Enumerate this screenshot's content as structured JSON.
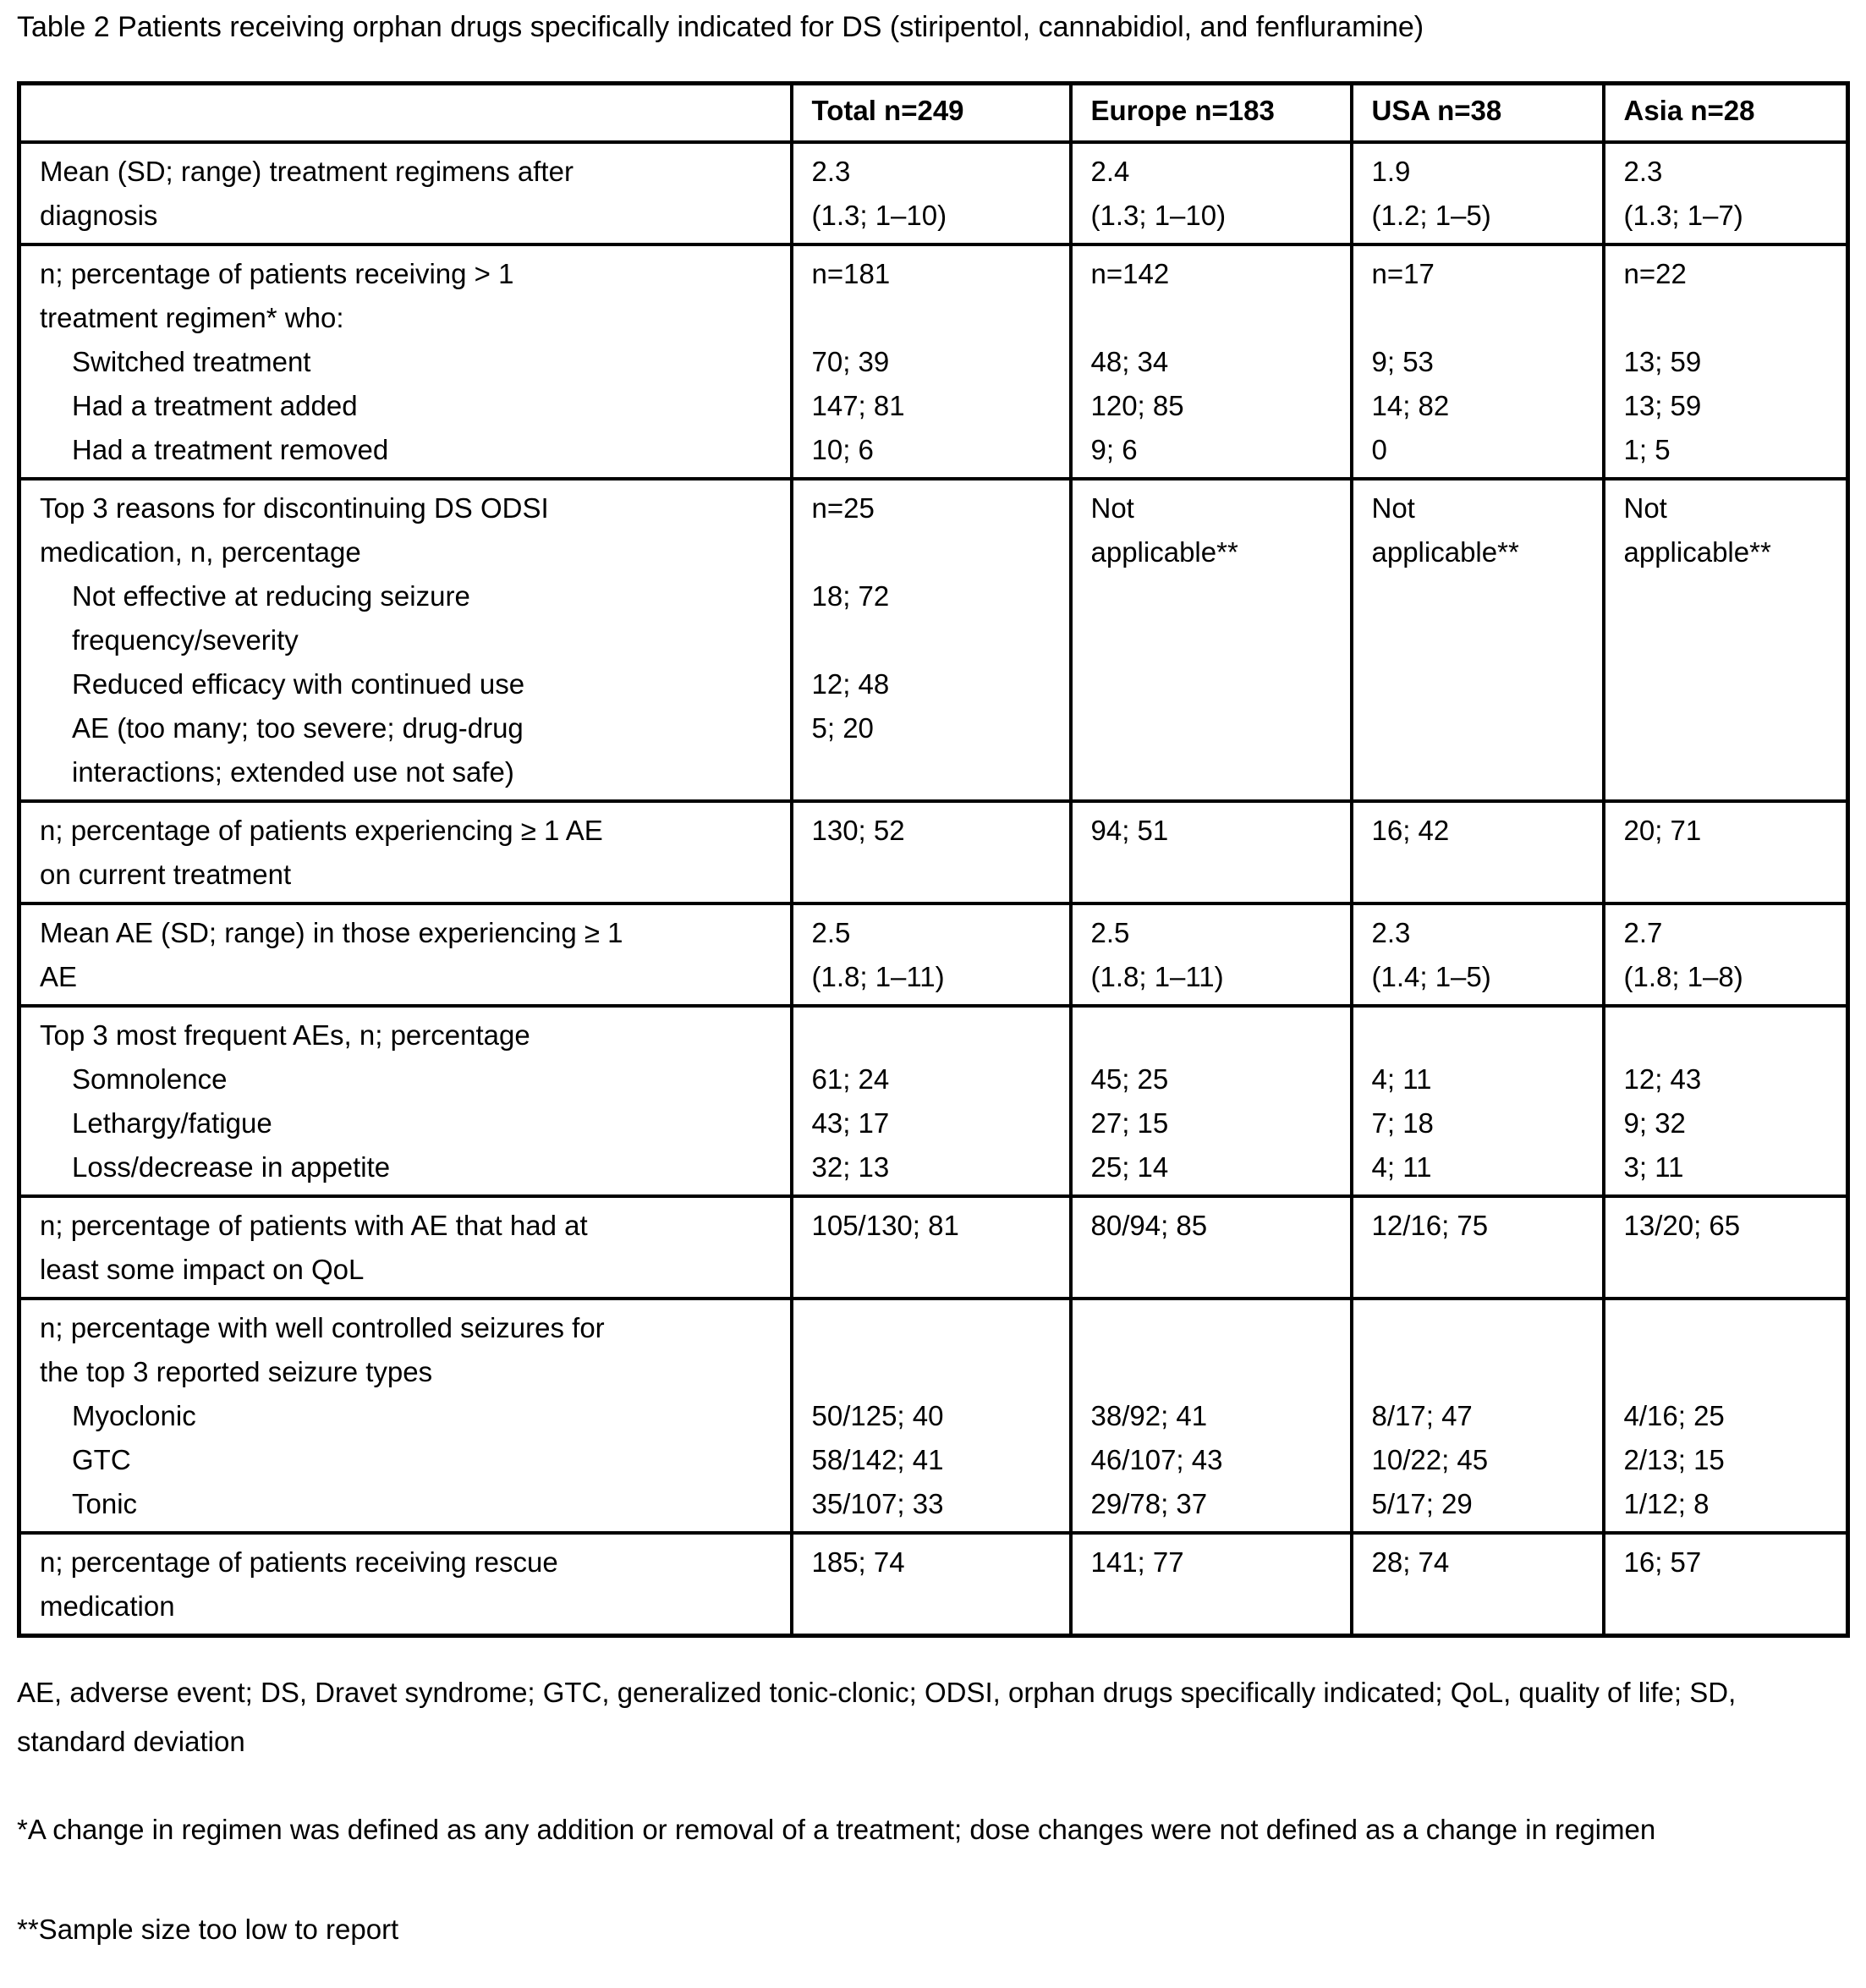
{
  "title": "Table 2 Patients receiving orphan drugs specifically indicated for DS (stiripentol, cannabidiol, and fenfluramine)",
  "table": {
    "header": {
      "corner": "",
      "columns": [
        "Total n=249",
        "Europe n=183",
        "USA n=38",
        "Asia n=28"
      ]
    },
    "rows": [
      {
        "id": "mean-treatment-regimens",
        "label_lines": [
          {
            "text": "Mean (SD; range) treatment regimens after",
            "indent": 0
          },
          {
            "text": "diagnosis",
            "indent": 0
          }
        ],
        "cells": [
          [
            "2.3",
            "(1.3; 1–10)"
          ],
          [
            "2.4",
            "(1.3; 1–10)"
          ],
          [
            "1.9",
            "(1.2; 1–5)"
          ],
          [
            "2.3",
            "(1.3; 1–7)"
          ]
        ]
      },
      {
        "id": "patients-receiving-gt1-regimen",
        "label_lines": [
          {
            "text": "n; percentage of patients receiving > 1",
            "indent": 0
          },
          {
            "text": "treatment regimen* who:",
            "indent": 0
          },
          {
            "text": "Switched treatment",
            "indent": 1
          },
          {
            "text": "Had a treatment added",
            "indent": 1
          },
          {
            "text": "Had a treatment removed",
            "indent": 1
          }
        ],
        "cells": [
          [
            "n=181",
            "",
            "70; 39",
            "147; 81",
            "10; 6"
          ],
          [
            "n=142",
            "",
            "48; 34",
            "120; 85",
            "9; 6"
          ],
          [
            "n=17",
            "",
            "9; 53",
            "14; 82",
            "0"
          ],
          [
            "n=22",
            "",
            "13; 59",
            "13; 59",
            "1; 5"
          ]
        ]
      },
      {
        "id": "top3-reasons-discontinuing",
        "label_lines": [
          {
            "text": "Top 3 reasons for discontinuing DS ODSI",
            "indent": 0
          },
          {
            "text": "medication, n, percentage",
            "indent": 0
          },
          {
            "text": "Not effective at reducing seizure",
            "indent": 1
          },
          {
            "text": "frequency/severity",
            "indent": 1
          },
          {
            "text": "Reduced efficacy with continued use",
            "indent": 1
          },
          {
            "text": "AE (too many; too severe; drug-drug",
            "indent": 1
          },
          {
            "text": "interactions; extended use not safe)",
            "indent": 1
          }
        ],
        "cells": [
          [
            "n=25",
            "",
            "18; 72",
            "",
            "12; 48",
            "5; 20",
            ""
          ],
          [
            "Not",
            "applicable**",
            "",
            "",
            "",
            "",
            ""
          ],
          [
            "Not",
            "applicable**",
            "",
            "",
            "",
            "",
            ""
          ],
          [
            "Not",
            "applicable**",
            "",
            "",
            "",
            "",
            ""
          ]
        ]
      },
      {
        "id": "patients-experiencing-ae",
        "label_lines": [
          {
            "text": "n; percentage of patients experiencing ≥ 1 AE",
            "indent": 0
          },
          {
            "text": "on current treatment",
            "indent": 0
          }
        ],
        "cells": [
          [
            "130; 52",
            ""
          ],
          [
            "94; 51",
            ""
          ],
          [
            "16; 42",
            ""
          ],
          [
            "20; 71",
            ""
          ]
        ]
      },
      {
        "id": "mean-ae",
        "label_lines": [
          {
            "text": "Mean AE (SD; range) in those experiencing ≥ 1",
            "indent": 0
          },
          {
            "text": "AE",
            "indent": 0
          }
        ],
        "cells": [
          [
            "2.5",
            "(1.8; 1–11)"
          ],
          [
            "2.5",
            "(1.8; 1–11)"
          ],
          [
            "2.3",
            "(1.4; 1–5)"
          ],
          [
            "2.7",
            "(1.8; 1–8)"
          ]
        ]
      },
      {
        "id": "top3-frequent-aes",
        "label_lines": [
          {
            "text": "Top 3 most frequent AEs, n; percentage",
            "indent": 0
          },
          {
            "text": "Somnolence",
            "indent": 1
          },
          {
            "text": "Lethargy/fatigue",
            "indent": 1
          },
          {
            "text": "Loss/decrease in appetite",
            "indent": 1
          }
        ],
        "cells": [
          [
            "",
            "61; 24",
            "43; 17",
            "32; 13"
          ],
          [
            "",
            "45; 25",
            "27; 15",
            "25; 14"
          ],
          [
            "",
            "4; 11",
            "7; 18",
            "4; 11"
          ],
          [
            "",
            "12; 43",
            "9; 32",
            "3; 11"
          ]
        ]
      },
      {
        "id": "ae-impact-on-qol",
        "label_lines": [
          {
            "text": "n; percentage of patients with AE that had at",
            "indent": 0
          },
          {
            "text": "least some impact on QoL",
            "indent": 0
          }
        ],
        "cells": [
          [
            "105/130; 81",
            ""
          ],
          [
            "80/94; 85",
            ""
          ],
          [
            "12/16; 75",
            ""
          ],
          [
            "13/20; 65",
            ""
          ]
        ]
      },
      {
        "id": "well-controlled-seizures",
        "label_lines": [
          {
            "text": "n; percentage with well controlled seizures for",
            "indent": 0
          },
          {
            "text": "the top 3 reported seizure types",
            "indent": 0
          },
          {
            "text": "Myoclonic",
            "indent": 1
          },
          {
            "text": "GTC",
            "indent": 1
          },
          {
            "text": "Tonic",
            "indent": 1
          }
        ],
        "cells": [
          [
            "",
            "",
            "50/125; 40",
            "58/142; 41",
            "35/107; 33"
          ],
          [
            "",
            "",
            "38/92; 41",
            "46/107; 43",
            "29/78; 37"
          ],
          [
            "",
            "",
            "8/17; 47",
            "10/22; 45",
            "5/17; 29"
          ],
          [
            "",
            "",
            "4/16; 25",
            "2/13; 15",
            "1/12; 8"
          ]
        ]
      },
      {
        "id": "rescue-medication",
        "label_lines": [
          {
            "text": "n; percentage of patients receiving rescue",
            "indent": 0
          },
          {
            "text": "medication",
            "indent": 0
          }
        ],
        "cells": [
          [
            "185; 74",
            ""
          ],
          [
            "141; 77",
            ""
          ],
          [
            "28; 74",
            ""
          ],
          [
            "16; 57",
            ""
          ]
        ]
      }
    ]
  },
  "footnotes": [
    "AE, adverse event; DS, Dravet syndrome; GTC, generalized tonic-clonic; ODSI, orphan drugs specifically indicated; QoL, quality of life; SD, standard deviation",
    "*A change in regimen was defined as any addition or removal of a treatment; dose changes were not defined as a change in regimen",
    "**Sample size too low to report"
  ]
}
